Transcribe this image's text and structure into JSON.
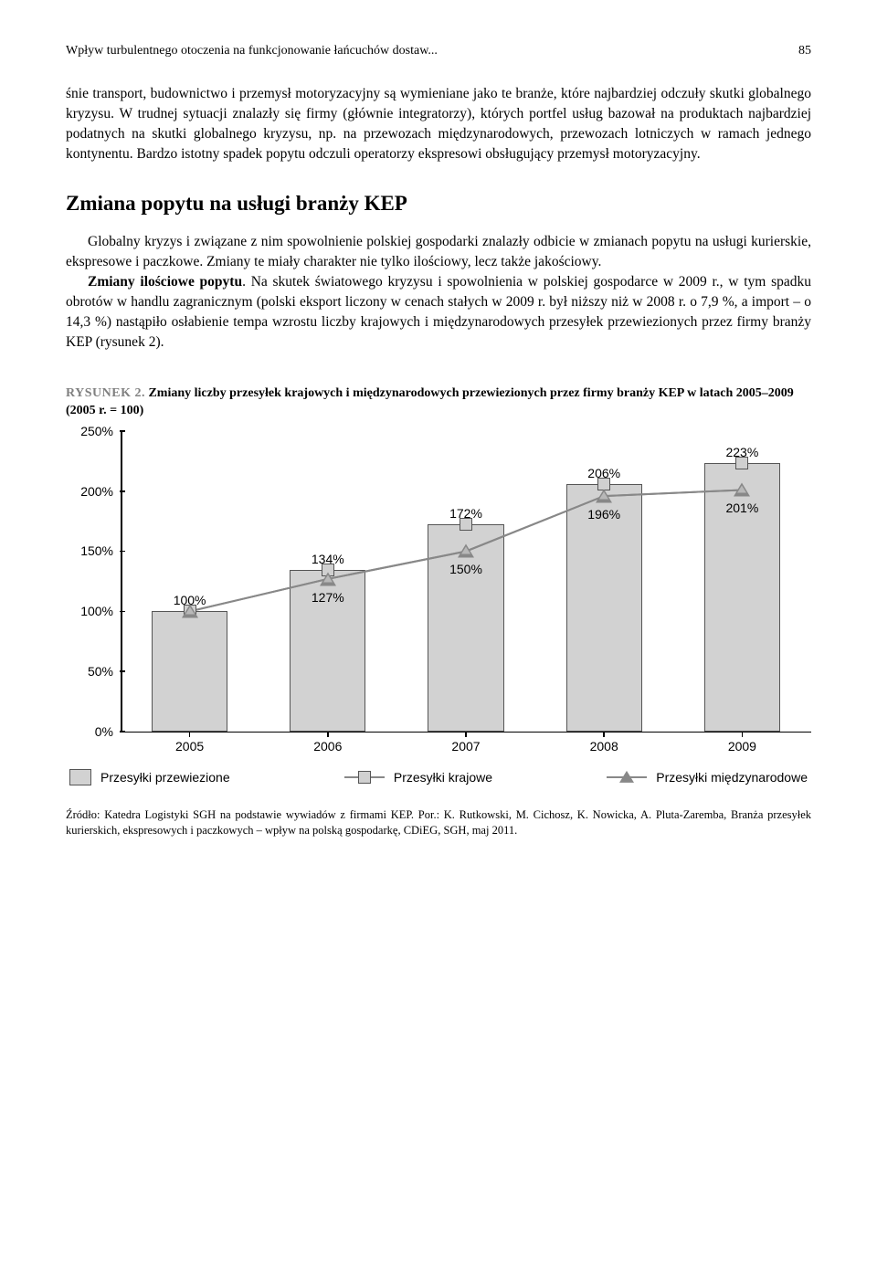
{
  "header": {
    "title": "Wpływ turbulentnego otoczenia na funkcjonowanie łańcuchów dostaw...",
    "page": "85"
  },
  "para1": "śnie transport, budownictwo i przemysł motoryzacyjny są wymieniane jako te branże, które najbardziej odczuły skutki globalnego kryzysu. W trudnej sytuacji znalazły się firmy (głównie integratorzy), których portfel usług bazował na produktach najbardziej podatnych na skutki globalnego kryzysu, np. na przewozach międzynarodowych, przewozach lotniczych w ramach jednego kontynentu. Bardzo istotny spadek popytu odczuli operatorzy ekspresowi obsługujący przemysł motoryzacyjny.",
  "section_title": "Zmiana popytu na usługi branży KEP",
  "para2_a": "Globalny kryzys i związane z nim spowolnienie polskiej gospodarki znalazły odbicie w zmianach popytu na usługi kurierskie, ekspresowe i paczkowe. Zmiany te miały charakter nie tylko ilościowy, lecz także jakościowy.",
  "para2_b_bold": "Zmiany ilościowe popytu",
  "para2_b": ". Na skutek światowego kryzysu i spowolnienia w polskiej gospodarce w 2009 r., w tym spadku obrotów w handlu zagranicznym (polski eksport liczony w cenach stałych w 2009 r. był niższy niż w 2008 r. o 7,9 %, a import – o 14,3 %) nastąpiło osłabienie tempa wzrostu liczby krajowych i międzynarodowych przesyłek przewiezionych przez firmy branży KEP (rysunek 2).",
  "figure": {
    "tag": "RYSUNEK 2.",
    "caption": "Zmiany liczby przesyłek krajowych i międzynarodowych przewiezionych przez firmy branży KEP w latach 2005–2009 (2005 r. = 100)"
  },
  "chart": {
    "type": "bar-with-lines",
    "background_color": "#ffffff",
    "grid": false,
    "x_categories": [
      "2005",
      "2006",
      "2007",
      "2008",
      "2009"
    ],
    "y_ticks": [
      "0%",
      "50%",
      "100%",
      "150%",
      "200%",
      "250%"
    ],
    "ylim": [
      0,
      250
    ],
    "ytick_step": 50,
    "bars": {
      "values": [
        100,
        134,
        172,
        206,
        223
      ],
      "labels": [
        "100%",
        "134%",
        "172%",
        "206%",
        "223%"
      ],
      "fill": "#d2d2d2",
      "stroke": "#555555",
      "bar_width_frac": 0.55
    },
    "series_square": {
      "values": [
        100,
        127,
        150,
        196,
        201
      ],
      "labels": [
        "",
        "127%",
        "150%",
        "196%",
        "201%"
      ],
      "marker": "square",
      "marker_fill": "#d0d0d0",
      "marker_stroke": "#555555",
      "line_color": "#888888"
    },
    "series_triangle": {
      "values": [
        100,
        127,
        150,
        196,
        201
      ],
      "marker": "triangle",
      "marker_fill": "#888888",
      "line_color": "#888888"
    },
    "legend": {
      "bar": "Przesyłki przewiezione",
      "square": "Przesyłki krajowe",
      "triangle": "Przesyłki międzynarodowe"
    },
    "font_family": "Arial",
    "tick_fontsize": 14,
    "label_fontsize": 14
  },
  "source": "Źródło: Katedra Logistyki SGH na podstawie wywiadów z firmami KEP. Por.: K. Rutkowski, M. Cichosz, K. Nowicka, A. Pluta-Zaremba, Branża przesyłek kurierskich, ekspresowych i paczkowych – wpływ na polską gospodarkę, CDiEG, SGH, maj 2011."
}
